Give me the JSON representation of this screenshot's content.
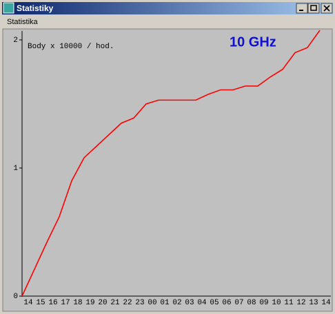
{
  "window": {
    "title": "Statistiky",
    "menu": [
      "Statistika"
    ]
  },
  "chart_data": {
    "type": "line",
    "annotations": [
      "Body x 10000 / hod.",
      "10 GHz"
    ],
    "categories": [
      "14",
      "15",
      "16",
      "17",
      "18",
      "19",
      "20",
      "21",
      "22",
      "23",
      "00",
      "01",
      "02",
      "03",
      "04",
      "05",
      "06",
      "07",
      "08",
      "09",
      "10",
      "11",
      "12",
      "13",
      "14"
    ],
    "series": [
      {
        "color": "#ff0000",
        "values": [
          0,
          0.21,
          0.42,
          0.62,
          0.9,
          1.08,
          1.17,
          1.26,
          1.35,
          1.39,
          1.5,
          1.53,
          1.53,
          1.53,
          1.53,
          1.575,
          1.61,
          1.61,
          1.64,
          1.64,
          1.71,
          1.77,
          1.9,
          1.94,
          2.075
        ]
      }
    ],
    "ylim": [
      0,
      2.075
    ],
    "yticks": [
      0,
      1,
      2
    ],
    "grid": false
  }
}
